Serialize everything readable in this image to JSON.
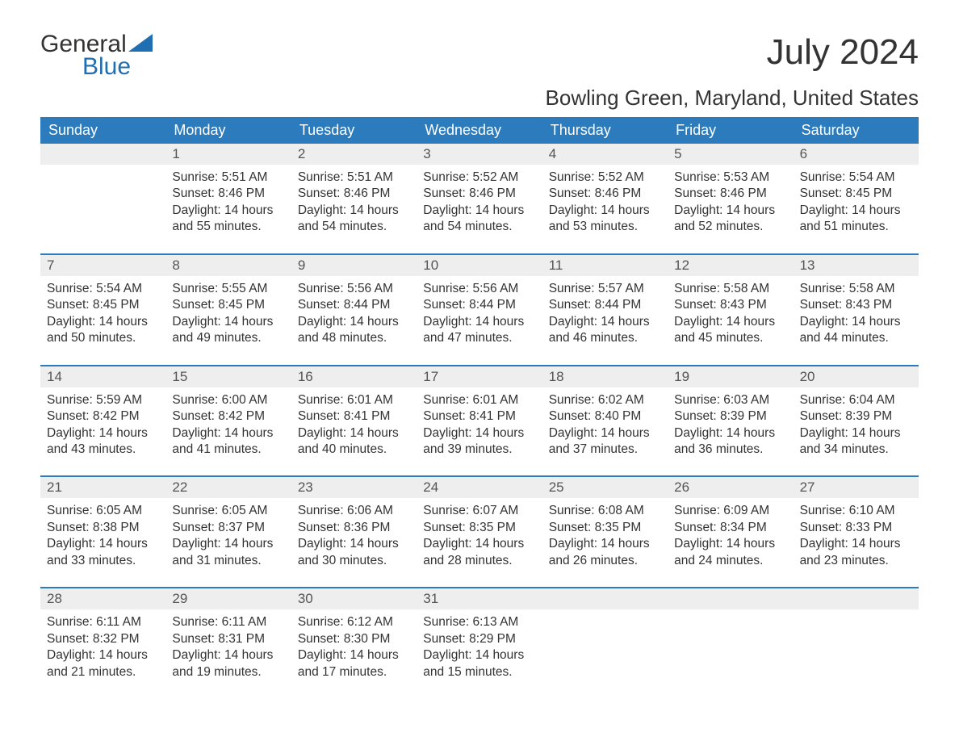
{
  "logo": {
    "line1": "General",
    "line2": "Blue"
  },
  "title": "July 2024",
  "location": "Bowling Green, Maryland, United States",
  "colors": {
    "header_bg": "#2b7bbd",
    "header_text": "#ffffff",
    "accent": "#1f6fb2",
    "daynum_bg": "#eeeeee",
    "text": "#333333",
    "page_bg": "#ffffff"
  },
  "typography": {
    "title_fontsize": 44,
    "location_fontsize": 26,
    "dayheader_fontsize": 18,
    "daynum_fontsize": 17,
    "body_fontsize": 15.5
  },
  "day_headers": [
    "Sunday",
    "Monday",
    "Tuesday",
    "Wednesday",
    "Thursday",
    "Friday",
    "Saturday"
  ],
  "weeks": [
    [
      {
        "n": "",
        "sunrise": "",
        "sunset": "",
        "daylight": ""
      },
      {
        "n": "1",
        "sunrise": "5:51 AM",
        "sunset": "8:46 PM",
        "daylight": "14 hours and 55 minutes."
      },
      {
        "n": "2",
        "sunrise": "5:51 AM",
        "sunset": "8:46 PM",
        "daylight": "14 hours and 54 minutes."
      },
      {
        "n": "3",
        "sunrise": "5:52 AM",
        "sunset": "8:46 PM",
        "daylight": "14 hours and 54 minutes."
      },
      {
        "n": "4",
        "sunrise": "5:52 AM",
        "sunset": "8:46 PM",
        "daylight": "14 hours and 53 minutes."
      },
      {
        "n": "5",
        "sunrise": "5:53 AM",
        "sunset": "8:46 PM",
        "daylight": "14 hours and 52 minutes."
      },
      {
        "n": "6",
        "sunrise": "5:54 AM",
        "sunset": "8:45 PM",
        "daylight": "14 hours and 51 minutes."
      }
    ],
    [
      {
        "n": "7",
        "sunrise": "5:54 AM",
        "sunset": "8:45 PM",
        "daylight": "14 hours and 50 minutes."
      },
      {
        "n": "8",
        "sunrise": "5:55 AM",
        "sunset": "8:45 PM",
        "daylight": "14 hours and 49 minutes."
      },
      {
        "n": "9",
        "sunrise": "5:56 AM",
        "sunset": "8:44 PM",
        "daylight": "14 hours and 48 minutes."
      },
      {
        "n": "10",
        "sunrise": "5:56 AM",
        "sunset": "8:44 PM",
        "daylight": "14 hours and 47 minutes."
      },
      {
        "n": "11",
        "sunrise": "5:57 AM",
        "sunset": "8:44 PM",
        "daylight": "14 hours and 46 minutes."
      },
      {
        "n": "12",
        "sunrise": "5:58 AM",
        "sunset": "8:43 PM",
        "daylight": "14 hours and 45 minutes."
      },
      {
        "n": "13",
        "sunrise": "5:58 AM",
        "sunset": "8:43 PM",
        "daylight": "14 hours and 44 minutes."
      }
    ],
    [
      {
        "n": "14",
        "sunrise": "5:59 AM",
        "sunset": "8:42 PM",
        "daylight": "14 hours and 43 minutes."
      },
      {
        "n": "15",
        "sunrise": "6:00 AM",
        "sunset": "8:42 PM",
        "daylight": "14 hours and 41 minutes."
      },
      {
        "n": "16",
        "sunrise": "6:01 AM",
        "sunset": "8:41 PM",
        "daylight": "14 hours and 40 minutes."
      },
      {
        "n": "17",
        "sunrise": "6:01 AM",
        "sunset": "8:41 PM",
        "daylight": "14 hours and 39 minutes."
      },
      {
        "n": "18",
        "sunrise": "6:02 AM",
        "sunset": "8:40 PM",
        "daylight": "14 hours and 37 minutes."
      },
      {
        "n": "19",
        "sunrise": "6:03 AM",
        "sunset": "8:39 PM",
        "daylight": "14 hours and 36 minutes."
      },
      {
        "n": "20",
        "sunrise": "6:04 AM",
        "sunset": "8:39 PM",
        "daylight": "14 hours and 34 minutes."
      }
    ],
    [
      {
        "n": "21",
        "sunrise": "6:05 AM",
        "sunset": "8:38 PM",
        "daylight": "14 hours and 33 minutes."
      },
      {
        "n": "22",
        "sunrise": "6:05 AM",
        "sunset": "8:37 PM",
        "daylight": "14 hours and 31 minutes."
      },
      {
        "n": "23",
        "sunrise": "6:06 AM",
        "sunset": "8:36 PM",
        "daylight": "14 hours and 30 minutes."
      },
      {
        "n": "24",
        "sunrise": "6:07 AM",
        "sunset": "8:35 PM",
        "daylight": "14 hours and 28 minutes."
      },
      {
        "n": "25",
        "sunrise": "6:08 AM",
        "sunset": "8:35 PM",
        "daylight": "14 hours and 26 minutes."
      },
      {
        "n": "26",
        "sunrise": "6:09 AM",
        "sunset": "8:34 PM",
        "daylight": "14 hours and 24 minutes."
      },
      {
        "n": "27",
        "sunrise": "6:10 AM",
        "sunset": "8:33 PM",
        "daylight": "14 hours and 23 minutes."
      }
    ],
    [
      {
        "n": "28",
        "sunrise": "6:11 AM",
        "sunset": "8:32 PM",
        "daylight": "14 hours and 21 minutes."
      },
      {
        "n": "29",
        "sunrise": "6:11 AM",
        "sunset": "8:31 PM",
        "daylight": "14 hours and 19 minutes."
      },
      {
        "n": "30",
        "sunrise": "6:12 AM",
        "sunset": "8:30 PM",
        "daylight": "14 hours and 17 minutes."
      },
      {
        "n": "31",
        "sunrise": "6:13 AM",
        "sunset": "8:29 PM",
        "daylight": "14 hours and 15 minutes."
      },
      {
        "n": "",
        "sunrise": "",
        "sunset": "",
        "daylight": ""
      },
      {
        "n": "",
        "sunrise": "",
        "sunset": "",
        "daylight": ""
      },
      {
        "n": "",
        "sunrise": "",
        "sunset": "",
        "daylight": ""
      }
    ]
  ],
  "labels": {
    "sunrise": "Sunrise:",
    "sunset": "Sunset:",
    "daylight": "Daylight:"
  }
}
